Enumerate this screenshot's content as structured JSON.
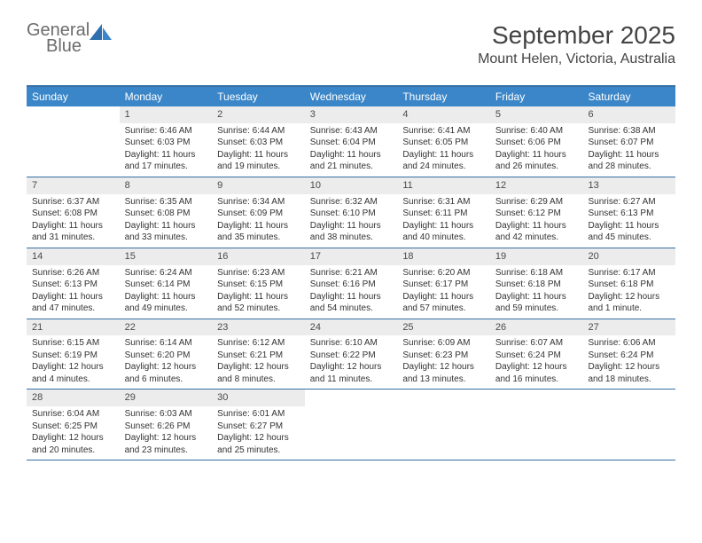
{
  "brand": {
    "word1": "General",
    "word2": "Blue"
  },
  "title": "September 2025",
  "location": "Mount Helen, Victoria, Australia",
  "colors": {
    "header_bg": "#3a86c8",
    "header_border": "#356fa3",
    "daynum_bg": "#ececec",
    "text": "#333333",
    "logo_gray": "#6c6c6c",
    "logo_blue": "#3a7cc4",
    "title_text": "#444444"
  },
  "day_names": [
    "Sunday",
    "Monday",
    "Tuesday",
    "Wednesday",
    "Thursday",
    "Friday",
    "Saturday"
  ],
  "weeks": [
    [
      {
        "blank": true
      },
      {
        "day": "1",
        "sunrise": "6:46 AM",
        "sunset": "6:03 PM",
        "daylight": "11 hours and 17 minutes."
      },
      {
        "day": "2",
        "sunrise": "6:44 AM",
        "sunset": "6:03 PM",
        "daylight": "11 hours and 19 minutes."
      },
      {
        "day": "3",
        "sunrise": "6:43 AM",
        "sunset": "6:04 PM",
        "daylight": "11 hours and 21 minutes."
      },
      {
        "day": "4",
        "sunrise": "6:41 AM",
        "sunset": "6:05 PM",
        "daylight": "11 hours and 24 minutes."
      },
      {
        "day": "5",
        "sunrise": "6:40 AM",
        "sunset": "6:06 PM",
        "daylight": "11 hours and 26 minutes."
      },
      {
        "day": "6",
        "sunrise": "6:38 AM",
        "sunset": "6:07 PM",
        "daylight": "11 hours and 28 minutes."
      }
    ],
    [
      {
        "day": "7",
        "sunrise": "6:37 AM",
        "sunset": "6:08 PM",
        "daylight": "11 hours and 31 minutes."
      },
      {
        "day": "8",
        "sunrise": "6:35 AM",
        "sunset": "6:08 PM",
        "daylight": "11 hours and 33 minutes."
      },
      {
        "day": "9",
        "sunrise": "6:34 AM",
        "sunset": "6:09 PM",
        "daylight": "11 hours and 35 minutes."
      },
      {
        "day": "10",
        "sunrise": "6:32 AM",
        "sunset": "6:10 PM",
        "daylight": "11 hours and 38 minutes."
      },
      {
        "day": "11",
        "sunrise": "6:31 AM",
        "sunset": "6:11 PM",
        "daylight": "11 hours and 40 minutes."
      },
      {
        "day": "12",
        "sunrise": "6:29 AM",
        "sunset": "6:12 PM",
        "daylight": "11 hours and 42 minutes."
      },
      {
        "day": "13",
        "sunrise": "6:27 AM",
        "sunset": "6:13 PM",
        "daylight": "11 hours and 45 minutes."
      }
    ],
    [
      {
        "day": "14",
        "sunrise": "6:26 AM",
        "sunset": "6:13 PM",
        "daylight": "11 hours and 47 minutes."
      },
      {
        "day": "15",
        "sunrise": "6:24 AM",
        "sunset": "6:14 PM",
        "daylight": "11 hours and 49 minutes."
      },
      {
        "day": "16",
        "sunrise": "6:23 AM",
        "sunset": "6:15 PM",
        "daylight": "11 hours and 52 minutes."
      },
      {
        "day": "17",
        "sunrise": "6:21 AM",
        "sunset": "6:16 PM",
        "daylight": "11 hours and 54 minutes."
      },
      {
        "day": "18",
        "sunrise": "6:20 AM",
        "sunset": "6:17 PM",
        "daylight": "11 hours and 57 minutes."
      },
      {
        "day": "19",
        "sunrise": "6:18 AM",
        "sunset": "6:18 PM",
        "daylight": "11 hours and 59 minutes."
      },
      {
        "day": "20",
        "sunrise": "6:17 AM",
        "sunset": "6:18 PM",
        "daylight": "12 hours and 1 minute."
      }
    ],
    [
      {
        "day": "21",
        "sunrise": "6:15 AM",
        "sunset": "6:19 PM",
        "daylight": "12 hours and 4 minutes."
      },
      {
        "day": "22",
        "sunrise": "6:14 AM",
        "sunset": "6:20 PM",
        "daylight": "12 hours and 6 minutes."
      },
      {
        "day": "23",
        "sunrise": "6:12 AM",
        "sunset": "6:21 PM",
        "daylight": "12 hours and 8 minutes."
      },
      {
        "day": "24",
        "sunrise": "6:10 AM",
        "sunset": "6:22 PM",
        "daylight": "12 hours and 11 minutes."
      },
      {
        "day": "25",
        "sunrise": "6:09 AM",
        "sunset": "6:23 PM",
        "daylight": "12 hours and 13 minutes."
      },
      {
        "day": "26",
        "sunrise": "6:07 AM",
        "sunset": "6:24 PM",
        "daylight": "12 hours and 16 minutes."
      },
      {
        "day": "27",
        "sunrise": "6:06 AM",
        "sunset": "6:24 PM",
        "daylight": "12 hours and 18 minutes."
      }
    ],
    [
      {
        "day": "28",
        "sunrise": "6:04 AM",
        "sunset": "6:25 PM",
        "daylight": "12 hours and 20 minutes."
      },
      {
        "day": "29",
        "sunrise": "6:03 AM",
        "sunset": "6:26 PM",
        "daylight": "12 hours and 23 minutes."
      },
      {
        "day": "30",
        "sunrise": "6:01 AM",
        "sunset": "6:27 PM",
        "daylight": "12 hours and 25 minutes."
      },
      {
        "blank": true
      },
      {
        "blank": true
      },
      {
        "blank": true
      },
      {
        "blank": true
      }
    ]
  ],
  "labels": {
    "sunrise": "Sunrise:",
    "sunset": "Sunset:",
    "daylight": "Daylight:"
  }
}
